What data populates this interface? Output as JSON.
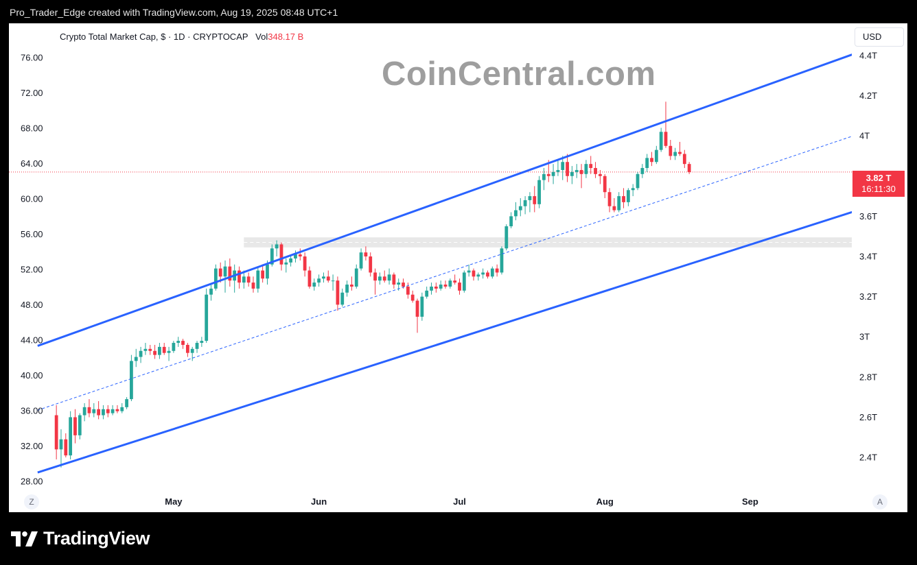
{
  "header": {
    "caption": "Pro_Trader_Edge created with TradingView.com, Aug 19, 2025 08:48 UTC+1"
  },
  "legend": {
    "title": "Crypto Total Market Cap, $ · 1D · CRYPTOCAP",
    "vol_label": "Vol",
    "vol_value": "348.17 B"
  },
  "watermark": "CoinCentral.com",
  "currency_button": "USD",
  "price_tag": {
    "price": "3.82 T",
    "countdown": "16:11:30",
    "color": "#f23645"
  },
  "zoom_button": "Z",
  "auto_button": "A",
  "brand": {
    "name": "TradingView"
  },
  "chart_data": {
    "type": "candlestick",
    "x_ticks": [
      "May",
      "Jun",
      "Jul",
      "Aug",
      "Sep"
    ],
    "left_axis": {
      "ticks": [
        "76.00",
        "72.00",
        "68.00",
        "64.00",
        "60.00",
        "56.00",
        "52.00",
        "48.00",
        "44.00",
        "40.00",
        "36.00",
        "32.00",
        "28.00"
      ],
      "range": [
        25.3,
        80.9
      ]
    },
    "right_axis": {
      "ticks": [
        "4.4T",
        "4.2T",
        "4T",
        "3.8T",
        "3.6T",
        "3.4T",
        "3.2T",
        "3T",
        "2.8T",
        "2.6T",
        "2.4T"
      ],
      "values": [
        4.4,
        4.2,
        4.0,
        3.8,
        3.6,
        3.4,
        3.2,
        3.0,
        2.8,
        2.6,
        2.4
      ],
      "range": [
        2.24,
        4.56
      ]
    },
    "date_range": [
      "2025-04-01",
      "2025-09-30"
    ],
    "last_price": 3.82,
    "candles": [
      {
        "d": "2025-04-06",
        "o": 2.61,
        "h": 2.66,
        "l": 2.39,
        "c": 2.44
      },
      {
        "d": "2025-04-07",
        "o": 2.44,
        "h": 2.54,
        "l": 2.35,
        "c": 2.49
      },
      {
        "d": "2025-04-08",
        "o": 2.49,
        "h": 2.52,
        "l": 2.4,
        "c": 2.41
      },
      {
        "d": "2025-04-09",
        "o": 2.41,
        "h": 2.63,
        "l": 2.39,
        "c": 2.6
      },
      {
        "d": "2025-04-10",
        "o": 2.6,
        "h": 2.64,
        "l": 2.47,
        "c": 2.51
      },
      {
        "d": "2025-04-11",
        "o": 2.51,
        "h": 2.62,
        "l": 2.49,
        "c": 2.61
      },
      {
        "d": "2025-04-12",
        "o": 2.61,
        "h": 2.67,
        "l": 2.58,
        "c": 2.65
      },
      {
        "d": "2025-04-13",
        "o": 2.65,
        "h": 2.69,
        "l": 2.6,
        "c": 2.62
      },
      {
        "d": "2025-04-14",
        "o": 2.62,
        "h": 2.67,
        "l": 2.6,
        "c": 2.64
      },
      {
        "d": "2025-04-15",
        "o": 2.64,
        "h": 2.68,
        "l": 2.59,
        "c": 2.61
      },
      {
        "d": "2025-04-16",
        "o": 2.61,
        "h": 2.66,
        "l": 2.59,
        "c": 2.64
      },
      {
        "d": "2025-04-17",
        "o": 2.64,
        "h": 2.66,
        "l": 2.6,
        "c": 2.62
      },
      {
        "d": "2025-04-18",
        "o": 2.62,
        "h": 2.66,
        "l": 2.61,
        "c": 2.64
      },
      {
        "d": "2025-04-19",
        "o": 2.64,
        "h": 2.66,
        "l": 2.62,
        "c": 2.63
      },
      {
        "d": "2025-04-20",
        "o": 2.63,
        "h": 2.67,
        "l": 2.62,
        "c": 2.65
      },
      {
        "d": "2025-04-21",
        "o": 2.65,
        "h": 2.7,
        "l": 2.64,
        "c": 2.69
      },
      {
        "d": "2025-04-22",
        "o": 2.69,
        "h": 2.91,
        "l": 2.68,
        "c": 2.88
      },
      {
        "d": "2025-04-23",
        "o": 2.88,
        "h": 2.94,
        "l": 2.85,
        "c": 2.9
      },
      {
        "d": "2025-04-24",
        "o": 2.9,
        "h": 2.95,
        "l": 2.87,
        "c": 2.93
      },
      {
        "d": "2025-04-25",
        "o": 2.93,
        "h": 2.97,
        "l": 2.91,
        "c": 2.94
      },
      {
        "d": "2025-04-26",
        "o": 2.94,
        "h": 2.96,
        "l": 2.91,
        "c": 2.93
      },
      {
        "d": "2025-04-27",
        "o": 2.93,
        "h": 2.96,
        "l": 2.89,
        "c": 2.91
      },
      {
        "d": "2025-04-28",
        "o": 2.91,
        "h": 2.97,
        "l": 2.89,
        "c": 2.95
      },
      {
        "d": "2025-04-29",
        "o": 2.95,
        "h": 2.97,
        "l": 2.91,
        "c": 2.92
      },
      {
        "d": "2025-04-30",
        "o": 2.92,
        "h": 2.95,
        "l": 2.88,
        "c": 2.93
      },
      {
        "d": "2025-05-01",
        "o": 2.93,
        "h": 2.98,
        "l": 2.92,
        "c": 2.97
      },
      {
        "d": "2025-05-02",
        "o": 2.97,
        "h": 3.0,
        "l": 2.95,
        "c": 2.98
      },
      {
        "d": "2025-05-03",
        "o": 2.98,
        "h": 2.99,
        "l": 2.94,
        "c": 2.96
      },
      {
        "d": "2025-05-04",
        "o": 2.96,
        "h": 2.97,
        "l": 2.9,
        "c": 2.92
      },
      {
        "d": "2025-05-05",
        "o": 2.92,
        "h": 2.95,
        "l": 2.88,
        "c": 2.94
      },
      {
        "d": "2025-05-06",
        "o": 2.94,
        "h": 2.98,
        "l": 2.92,
        "c": 2.97
      },
      {
        "d": "2025-05-07",
        "o": 2.97,
        "h": 3.0,
        "l": 2.95,
        "c": 2.98
      },
      {
        "d": "2025-05-08",
        "o": 2.98,
        "h": 3.24,
        "l": 2.97,
        "c": 3.21
      },
      {
        "d": "2025-05-09",
        "o": 3.21,
        "h": 3.26,
        "l": 3.18,
        "c": 3.24
      },
      {
        "d": "2025-05-10",
        "o": 3.24,
        "h": 3.36,
        "l": 3.23,
        "c": 3.34
      },
      {
        "d": "2025-05-11",
        "o": 3.34,
        "h": 3.37,
        "l": 3.27,
        "c": 3.3
      },
      {
        "d": "2025-05-12",
        "o": 3.3,
        "h": 3.38,
        "l": 3.22,
        "c": 3.35
      },
      {
        "d": "2025-05-13",
        "o": 3.35,
        "h": 3.39,
        "l": 3.25,
        "c": 3.28
      },
      {
        "d": "2025-05-14",
        "o": 3.28,
        "h": 3.36,
        "l": 3.22,
        "c": 3.33
      },
      {
        "d": "2025-05-15",
        "o": 3.33,
        "h": 3.35,
        "l": 3.24,
        "c": 3.27
      },
      {
        "d": "2025-05-16",
        "o": 3.27,
        "h": 3.33,
        "l": 3.24,
        "c": 3.3
      },
      {
        "d": "2025-05-17",
        "o": 3.3,
        "h": 3.32,
        "l": 3.25,
        "c": 3.27
      },
      {
        "d": "2025-05-18",
        "o": 3.27,
        "h": 3.3,
        "l": 3.22,
        "c": 3.24
      },
      {
        "d": "2025-05-19",
        "o": 3.24,
        "h": 3.35,
        "l": 3.22,
        "c": 3.33
      },
      {
        "d": "2025-05-20",
        "o": 3.33,
        "h": 3.36,
        "l": 3.27,
        "c": 3.29
      },
      {
        "d": "2025-05-21",
        "o": 3.29,
        "h": 3.38,
        "l": 3.26,
        "c": 3.36
      },
      {
        "d": "2025-05-22",
        "o": 3.36,
        "h": 3.46,
        "l": 3.35,
        "c": 3.44
      },
      {
        "d": "2025-05-23",
        "o": 3.44,
        "h": 3.48,
        "l": 3.4,
        "c": 3.46
      },
      {
        "d": "2025-05-24",
        "o": 3.46,
        "h": 3.47,
        "l": 3.33,
        "c": 3.36
      },
      {
        "d": "2025-05-25",
        "o": 3.36,
        "h": 3.39,
        "l": 3.32,
        "c": 3.37
      },
      {
        "d": "2025-05-26",
        "o": 3.37,
        "h": 3.41,
        "l": 3.35,
        "c": 3.39
      },
      {
        "d": "2025-05-27",
        "o": 3.39,
        "h": 3.43,
        "l": 3.37,
        "c": 3.41
      },
      {
        "d": "2025-05-28",
        "o": 3.41,
        "h": 3.44,
        "l": 3.38,
        "c": 3.4
      },
      {
        "d": "2025-05-29",
        "o": 3.4,
        "h": 3.42,
        "l": 3.3,
        "c": 3.33
      },
      {
        "d": "2025-05-30",
        "o": 3.33,
        "h": 3.35,
        "l": 3.24,
        "c": 3.25
      },
      {
        "d": "2025-05-31",
        "o": 3.25,
        "h": 3.29,
        "l": 3.23,
        "c": 3.27
      },
      {
        "d": "2025-06-01",
        "o": 3.27,
        "h": 3.31,
        "l": 3.25,
        "c": 3.29
      },
      {
        "d": "2025-06-02",
        "o": 3.29,
        "h": 3.32,
        "l": 3.27,
        "c": 3.3
      },
      {
        "d": "2025-06-03",
        "o": 3.3,
        "h": 3.33,
        "l": 3.27,
        "c": 3.28
      },
      {
        "d": "2025-06-04",
        "o": 3.28,
        "h": 3.31,
        "l": 3.23,
        "c": 3.28
      },
      {
        "d": "2025-06-05",
        "o": 3.28,
        "h": 3.3,
        "l": 3.13,
        "c": 3.16
      },
      {
        "d": "2025-06-06",
        "o": 3.16,
        "h": 3.24,
        "l": 3.15,
        "c": 3.22
      },
      {
        "d": "2025-06-07",
        "o": 3.22,
        "h": 3.28,
        "l": 3.2,
        "c": 3.26
      },
      {
        "d": "2025-06-08",
        "o": 3.26,
        "h": 3.3,
        "l": 3.23,
        "c": 3.25
      },
      {
        "d": "2025-06-09",
        "o": 3.25,
        "h": 3.36,
        "l": 3.24,
        "c": 3.34
      },
      {
        "d": "2025-06-10",
        "o": 3.34,
        "h": 3.44,
        "l": 3.33,
        "c": 3.42
      },
      {
        "d": "2025-06-11",
        "o": 3.42,
        "h": 3.45,
        "l": 3.38,
        "c": 3.4
      },
      {
        "d": "2025-06-12",
        "o": 3.4,
        "h": 3.42,
        "l": 3.3,
        "c": 3.32
      },
      {
        "d": "2025-06-13",
        "o": 3.32,
        "h": 3.34,
        "l": 3.21,
        "c": 3.28
      },
      {
        "d": "2025-06-14",
        "o": 3.28,
        "h": 3.32,
        "l": 3.26,
        "c": 3.3
      },
      {
        "d": "2025-06-15",
        "o": 3.3,
        "h": 3.33,
        "l": 3.27,
        "c": 3.28
      },
      {
        "d": "2025-06-16",
        "o": 3.28,
        "h": 3.34,
        "l": 3.26,
        "c": 3.31
      },
      {
        "d": "2025-06-17",
        "o": 3.31,
        "h": 3.32,
        "l": 3.24,
        "c": 3.26
      },
      {
        "d": "2025-06-18",
        "o": 3.26,
        "h": 3.29,
        "l": 3.23,
        "c": 3.27
      },
      {
        "d": "2025-06-19",
        "o": 3.27,
        "h": 3.29,
        "l": 3.24,
        "c": 3.25
      },
      {
        "d": "2025-06-20",
        "o": 3.25,
        "h": 3.27,
        "l": 3.19,
        "c": 3.21
      },
      {
        "d": "2025-06-21",
        "o": 3.21,
        "h": 3.23,
        "l": 3.17,
        "c": 3.18
      },
      {
        "d": "2025-06-22",
        "o": 3.18,
        "h": 3.19,
        "l": 3.02,
        "c": 3.1
      },
      {
        "d": "2025-06-23",
        "o": 3.1,
        "h": 3.22,
        "l": 3.08,
        "c": 3.2
      },
      {
        "d": "2025-06-24",
        "o": 3.2,
        "h": 3.25,
        "l": 3.19,
        "c": 3.23
      },
      {
        "d": "2025-06-25",
        "o": 3.23,
        "h": 3.27,
        "l": 3.21,
        "c": 3.25
      },
      {
        "d": "2025-06-26",
        "o": 3.25,
        "h": 3.27,
        "l": 3.22,
        "c": 3.24
      },
      {
        "d": "2025-06-27",
        "o": 3.24,
        "h": 3.28,
        "l": 3.23,
        "c": 3.26
      },
      {
        "d": "2025-06-28",
        "o": 3.26,
        "h": 3.28,
        "l": 3.24,
        "c": 3.25
      },
      {
        "d": "2025-06-29",
        "o": 3.25,
        "h": 3.29,
        "l": 3.24,
        "c": 3.28
      },
      {
        "d": "2025-06-30",
        "o": 3.28,
        "h": 3.31,
        "l": 3.26,
        "c": 3.27
      },
      {
        "d": "2025-07-01",
        "o": 3.27,
        "h": 3.29,
        "l": 3.21,
        "c": 3.23
      },
      {
        "d": "2025-07-02",
        "o": 3.23,
        "h": 3.33,
        "l": 3.22,
        "c": 3.32
      },
      {
        "d": "2025-07-03",
        "o": 3.32,
        "h": 3.36,
        "l": 3.3,
        "c": 3.33
      },
      {
        "d": "2025-07-04",
        "o": 3.33,
        "h": 3.34,
        "l": 3.28,
        "c": 3.3
      },
      {
        "d": "2025-07-05",
        "o": 3.3,
        "h": 3.32,
        "l": 3.28,
        "c": 3.31
      },
      {
        "d": "2025-07-06",
        "o": 3.31,
        "h": 3.34,
        "l": 3.29,
        "c": 3.32
      },
      {
        "d": "2025-07-07",
        "o": 3.32,
        "h": 3.33,
        "l": 3.29,
        "c": 3.3
      },
      {
        "d": "2025-07-08",
        "o": 3.3,
        "h": 3.35,
        "l": 3.29,
        "c": 3.34
      },
      {
        "d": "2025-07-09",
        "o": 3.34,
        "h": 3.36,
        "l": 3.3,
        "c": 3.32
      },
      {
        "d": "2025-07-10",
        "o": 3.32,
        "h": 3.45,
        "l": 3.31,
        "c": 3.44
      },
      {
        "d": "2025-07-11",
        "o": 3.44,
        "h": 3.56,
        "l": 3.43,
        "c": 3.55
      },
      {
        "d": "2025-07-12",
        "o": 3.55,
        "h": 3.62,
        "l": 3.54,
        "c": 3.6
      },
      {
        "d": "2025-07-13",
        "o": 3.6,
        "h": 3.67,
        "l": 3.58,
        "c": 3.63
      },
      {
        "d": "2025-07-14",
        "o": 3.63,
        "h": 3.69,
        "l": 3.6,
        "c": 3.65
      },
      {
        "d": "2025-07-15",
        "o": 3.65,
        "h": 3.7,
        "l": 3.61,
        "c": 3.68
      },
      {
        "d": "2025-07-16",
        "o": 3.68,
        "h": 3.72,
        "l": 3.62,
        "c": 3.7
      },
      {
        "d": "2025-07-17",
        "o": 3.7,
        "h": 3.75,
        "l": 3.62,
        "c": 3.66
      },
      {
        "d": "2025-07-18",
        "o": 3.66,
        "h": 3.8,
        "l": 3.64,
        "c": 3.78
      },
      {
        "d": "2025-07-19",
        "o": 3.78,
        "h": 3.84,
        "l": 3.73,
        "c": 3.81
      },
      {
        "d": "2025-07-20",
        "o": 3.81,
        "h": 3.88,
        "l": 3.77,
        "c": 3.8
      },
      {
        "d": "2025-07-21",
        "o": 3.8,
        "h": 3.86,
        "l": 3.76,
        "c": 3.82
      },
      {
        "d": "2025-07-22",
        "o": 3.82,
        "h": 3.88,
        "l": 3.8,
        "c": 3.83
      },
      {
        "d": "2025-07-23",
        "o": 3.83,
        "h": 3.9,
        "l": 3.78,
        "c": 3.87
      },
      {
        "d": "2025-07-24",
        "o": 3.87,
        "h": 3.91,
        "l": 3.77,
        "c": 3.8
      },
      {
        "d": "2025-07-25",
        "o": 3.8,
        "h": 3.85,
        "l": 3.76,
        "c": 3.82
      },
      {
        "d": "2025-07-26",
        "o": 3.82,
        "h": 3.86,
        "l": 3.79,
        "c": 3.83
      },
      {
        "d": "2025-07-27",
        "o": 3.83,
        "h": 3.86,
        "l": 3.74,
        "c": 3.81
      },
      {
        "d": "2025-07-28",
        "o": 3.81,
        "h": 3.88,
        "l": 3.79,
        "c": 3.86
      },
      {
        "d": "2025-07-29",
        "o": 3.86,
        "h": 3.9,
        "l": 3.81,
        "c": 3.84
      },
      {
        "d": "2025-07-30",
        "o": 3.84,
        "h": 3.87,
        "l": 3.79,
        "c": 3.81
      },
      {
        "d": "2025-07-31",
        "o": 3.81,
        "h": 3.83,
        "l": 3.76,
        "c": 3.8
      },
      {
        "d": "2025-08-01",
        "o": 3.8,
        "h": 3.81,
        "l": 3.69,
        "c": 3.72
      },
      {
        "d": "2025-08-02",
        "o": 3.72,
        "h": 3.74,
        "l": 3.62,
        "c": 3.65
      },
      {
        "d": "2025-08-03",
        "o": 3.65,
        "h": 3.69,
        "l": 3.62,
        "c": 3.63
      },
      {
        "d": "2025-08-04",
        "o": 3.63,
        "h": 3.72,
        "l": 3.62,
        "c": 3.7
      },
      {
        "d": "2025-08-05",
        "o": 3.7,
        "h": 3.74,
        "l": 3.64,
        "c": 3.67
      },
      {
        "d": "2025-08-06",
        "o": 3.67,
        "h": 3.74,
        "l": 3.65,
        "c": 3.73
      },
      {
        "d": "2025-08-07",
        "o": 3.73,
        "h": 3.76,
        "l": 3.7,
        "c": 3.74
      },
      {
        "d": "2025-08-08",
        "o": 3.74,
        "h": 3.82,
        "l": 3.73,
        "c": 3.81
      },
      {
        "d": "2025-08-09",
        "o": 3.81,
        "h": 3.86,
        "l": 3.79,
        "c": 3.84
      },
      {
        "d": "2025-08-10",
        "o": 3.84,
        "h": 3.91,
        "l": 3.82,
        "c": 3.89
      },
      {
        "d": "2025-08-11",
        "o": 3.89,
        "h": 3.92,
        "l": 3.85,
        "c": 3.87
      },
      {
        "d": "2025-08-12",
        "o": 3.87,
        "h": 3.95,
        "l": 3.86,
        "c": 3.93
      },
      {
        "d": "2025-08-13",
        "o": 3.93,
        "h": 4.04,
        "l": 3.92,
        "c": 4.02
      },
      {
        "d": "2025-08-14",
        "o": 4.02,
        "h": 4.17,
        "l": 3.94,
        "c": 3.95
      },
      {
        "d": "2025-08-15",
        "o": 3.95,
        "h": 3.98,
        "l": 3.88,
        "c": 3.9
      },
      {
        "d": "2025-08-16",
        "o": 3.9,
        "h": 3.94,
        "l": 3.88,
        "c": 3.92
      },
      {
        "d": "2025-08-17",
        "o": 3.92,
        "h": 3.97,
        "l": 3.9,
        "c": 3.91
      },
      {
        "d": "2025-08-18",
        "o": 3.91,
        "h": 3.93,
        "l": 3.84,
        "c": 3.86
      },
      {
        "d": "2025-08-19",
        "o": 3.86,
        "h": 3.87,
        "l": 3.81,
        "c": 3.82
      }
    ],
    "channel": {
      "upper": [
        [
          "2025-04-02",
          2.955
        ],
        [
          "2025-09-30",
          4.465
        ]
      ],
      "lower": [
        [
          "2025-04-02",
          2.325
        ],
        [
          "2025-09-30",
          3.675
        ]
      ],
      "middle": [
        [
          "2025-04-02",
          2.635
        ],
        [
          "2025-09-30",
          4.055
        ]
      ]
    },
    "zone": {
      "from": "2025-05-16",
      "to": "2025-09-30",
      "low": 3.445,
      "high": 3.495
    },
    "colors": {
      "up": "#26a69a",
      "down": "#f23645",
      "channel": "#2962ff"
    }
  }
}
